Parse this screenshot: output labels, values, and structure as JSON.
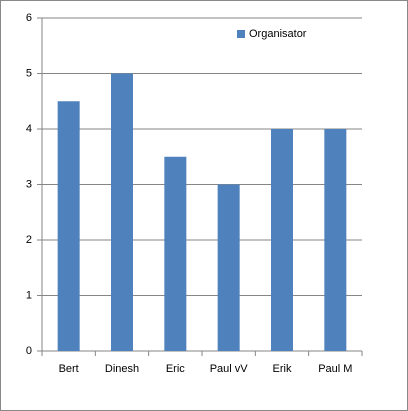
{
  "chart_data": {
    "type": "bar",
    "categories": [
      "Bert",
      "Dinesh",
      "Eric",
      "Paul vV",
      "Erik",
      "Paul M"
    ],
    "series": [
      {
        "name": "Organisator",
        "color": "#4f81bd",
        "values": [
          4.5,
          5,
          3.5,
          3,
          4,
          4
        ]
      }
    ],
    "ylim": [
      0,
      6
    ],
    "yticks": [
      0,
      1,
      2,
      3,
      4,
      5,
      6
    ],
    "grid": true,
    "legend": "top-right"
  }
}
